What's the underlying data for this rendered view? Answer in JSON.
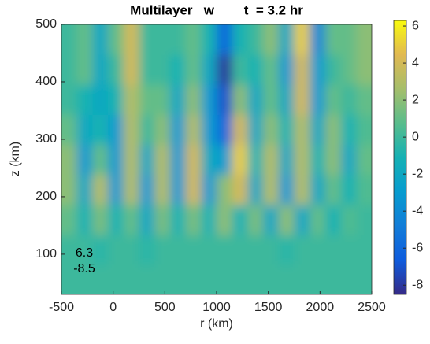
{
  "chart_data": {
    "type": "heatmap",
    "title": "Multilayer   w        t  = 3.2 hr",
    "x_label": "r (km)",
    "y_label": "z (km)",
    "xlim": [
      -500,
      2500
    ],
    "ylim": [
      30,
      500
    ],
    "xticks": [
      -500,
      0,
      500,
      1000,
      1500,
      2000,
      2500
    ],
    "yticks": [
      100,
      200,
      300,
      400,
      500
    ],
    "colorbar_ticks": [
      -8,
      -6,
      -4,
      -2,
      0,
      2,
      4,
      6
    ],
    "color_range": {
      "max": 6.3,
      "min": -8.5
    },
    "x": [
      -425,
      -275,
      -125,
      25,
      175,
      325,
      475,
      625,
      775,
      925,
      1075,
      1225,
      1375,
      1525,
      1675,
      1825,
      1975,
      2125,
      2275,
      2425
    ],
    "y": [
      56,
      108,
      160,
      213,
      265,
      317,
      369,
      422,
      474
    ],
    "z": [
      [
        0,
        0,
        0,
        0,
        0,
        0,
        0,
        0,
        0,
        0,
        0,
        0,
        0,
        0,
        0,
        0,
        0,
        0,
        0,
        0
      ],
      [
        0,
        0,
        -0.5,
        0,
        0,
        -0.5,
        0,
        0,
        0,
        0,
        0,
        0,
        0,
        0,
        -0.5,
        0,
        0,
        0,
        0,
        0
      ],
      [
        1,
        -1,
        1.5,
        -1,
        1,
        -2,
        1.5,
        -1,
        1.5,
        -1,
        2,
        -1,
        1.5,
        -2,
        2,
        -2,
        1,
        -1,
        0.5,
        0
      ],
      [
        2,
        -2,
        3,
        -3,
        3,
        -3,
        3,
        -3,
        4,
        -3,
        2,
        4,
        -2,
        3,
        -3,
        3,
        -2,
        1,
        -1,
        0.5
      ],
      [
        2,
        -3,
        1,
        -3,
        3,
        -2,
        3,
        -3,
        4,
        -2,
        -3,
        5,
        -1,
        3,
        -2,
        3,
        -1,
        2,
        -2,
        1
      ],
      [
        1,
        -2,
        -1,
        -3,
        3,
        0,
        2,
        -3,
        3,
        -3,
        -6,
        4,
        -2,
        2,
        -1,
        3,
        -2,
        2,
        -1,
        0.5
      ],
      [
        0,
        -1,
        -2,
        -1,
        3,
        1,
        1,
        -2,
        2,
        -3,
        -7,
        2,
        -2,
        1,
        -2,
        4,
        -3,
        1,
        0,
        1
      ],
      [
        0,
        1,
        -2,
        0,
        4,
        0,
        0,
        -1,
        1,
        -2,
        -8,
        0,
        -1,
        1,
        -3,
        4,
        -3,
        0,
        1,
        2
      ],
      [
        0,
        1,
        -2,
        1,
        4,
        0,
        0,
        0,
        1,
        -1,
        -6,
        -1,
        0,
        2,
        -2,
        5,
        -4,
        1,
        1,
        2
      ]
    ]
  }
}
